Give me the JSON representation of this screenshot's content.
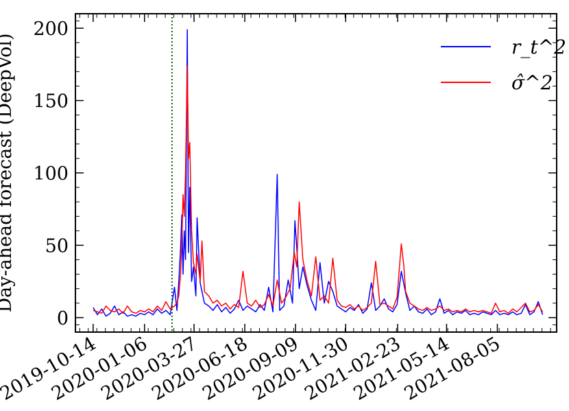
{
  "chart_data": {
    "type": "line",
    "title": "",
    "xlabel": "",
    "ylabel": "Day-ahead forecast (DeepVol)",
    "x_tick_labels": [
      "2019-10-14",
      "2020-01-06",
      "2020-03-27",
      "2020-06-18",
      "2020-09-09",
      "2020-11-30",
      "2021-02-23",
      "2021-05-14",
      "2021-08-05"
    ],
    "xlim": [
      "2019-09-15",
      "2021-11-10"
    ],
    "y_ticks": [
      0,
      50,
      100,
      150,
      200
    ],
    "y_tick_labels": [
      "0",
      "50",
      "100",
      "150",
      "200"
    ],
    "ylim": [
      -10,
      210
    ],
    "legend_position": "top-right",
    "vline": {
      "x": "2020-02-20",
      "color": "#006400",
      "style": "dotted"
    },
    "series": [
      {
        "name": "r_t^2",
        "color": "#0000ff",
        "points": [
          [
            "2019-10-14",
            7
          ],
          [
            "2019-10-21",
            2
          ],
          [
            "2019-10-28",
            6
          ],
          [
            "2019-11-04",
            1
          ],
          [
            "2019-11-11",
            3
          ],
          [
            "2019-11-18",
            8
          ],
          [
            "2019-11-25",
            2
          ],
          [
            "2019-12-02",
            4
          ],
          [
            "2019-12-09",
            1
          ],
          [
            "2019-12-16",
            2
          ],
          [
            "2019-12-23",
            1
          ],
          [
            "2019-12-30",
            3
          ],
          [
            "2020-01-06",
            2
          ],
          [
            "2020-01-13",
            4
          ],
          [
            "2020-01-20",
            2
          ],
          [
            "2020-01-27",
            6
          ],
          [
            "2020-02-03",
            3
          ],
          [
            "2020-02-10",
            5
          ],
          [
            "2020-02-17",
            2
          ],
          [
            "2020-02-24",
            21
          ],
          [
            "2020-02-28",
            5
          ],
          [
            "2020-03-02",
            24
          ],
          [
            "2020-03-05",
            48
          ],
          [
            "2020-03-07",
            71
          ],
          [
            "2020-03-09",
            30
          ],
          [
            "2020-03-11",
            60
          ],
          [
            "2020-03-13",
            40
          ],
          [
            "2020-03-16",
            199
          ],
          [
            "2020-03-18",
            45
          ],
          [
            "2020-03-20",
            90
          ],
          [
            "2020-03-23",
            25
          ],
          [
            "2020-03-26",
            35
          ],
          [
            "2020-03-30",
            15
          ],
          [
            "2020-04-01",
            69
          ],
          [
            "2020-04-06",
            24
          ],
          [
            "2020-04-13",
            10
          ],
          [
            "2020-04-20",
            8
          ],
          [
            "2020-04-27",
            5
          ],
          [
            "2020-05-04",
            9
          ],
          [
            "2020-05-11",
            4
          ],
          [
            "2020-05-18",
            7
          ],
          [
            "2020-05-25",
            3
          ],
          [
            "2020-06-01",
            6
          ],
          [
            "2020-06-08",
            12
          ],
          [
            "2020-06-15",
            5
          ],
          [
            "2020-06-22",
            8
          ],
          [
            "2020-06-29",
            6
          ],
          [
            "2020-07-06",
            4
          ],
          [
            "2020-07-13",
            9
          ],
          [
            "2020-07-20",
            5
          ],
          [
            "2020-07-27",
            21
          ],
          [
            "2020-08-03",
            4
          ],
          [
            "2020-08-10",
            99
          ],
          [
            "2020-08-14",
            5
          ],
          [
            "2020-08-21",
            8
          ],
          [
            "2020-08-28",
            26
          ],
          [
            "2020-09-04",
            10
          ],
          [
            "2020-09-08",
            67
          ],
          [
            "2020-09-11",
            48
          ],
          [
            "2020-09-15",
            20
          ],
          [
            "2020-09-21",
            35
          ],
          [
            "2020-09-28",
            22
          ],
          [
            "2020-10-05",
            12
          ],
          [
            "2020-10-12",
            5
          ],
          [
            "2020-10-19",
            38
          ],
          [
            "2020-10-26",
            10
          ],
          [
            "2020-11-02",
            25
          ],
          [
            "2020-11-09",
            18
          ],
          [
            "2020-11-16",
            8
          ],
          [
            "2020-11-23",
            6
          ],
          [
            "2020-11-30",
            4
          ],
          [
            "2020-12-07",
            7
          ],
          [
            "2020-12-14",
            5
          ],
          [
            "2020-12-21",
            9
          ],
          [
            "2020-12-28",
            3
          ],
          [
            "2021-01-04",
            6
          ],
          [
            "2021-01-11",
            24
          ],
          [
            "2021-01-18",
            5
          ],
          [
            "2021-01-25",
            8
          ],
          [
            "2021-02-01",
            13
          ],
          [
            "2021-02-08",
            6
          ],
          [
            "2021-02-15",
            4
          ],
          [
            "2021-02-22",
            9
          ],
          [
            "2021-03-01",
            32
          ],
          [
            "2021-03-08",
            17
          ],
          [
            "2021-03-15",
            5
          ],
          [
            "2021-03-22",
            8
          ],
          [
            "2021-03-29",
            4
          ],
          [
            "2021-04-05",
            3
          ],
          [
            "2021-04-12",
            6
          ],
          [
            "2021-04-19",
            2
          ],
          [
            "2021-04-26",
            4
          ],
          [
            "2021-05-03",
            13
          ],
          [
            "2021-05-10",
            3
          ],
          [
            "2021-05-17",
            5
          ],
          [
            "2021-05-24",
            2
          ],
          [
            "2021-05-31",
            4
          ],
          [
            "2021-06-07",
            3
          ],
          [
            "2021-06-14",
            5
          ],
          [
            "2021-06-21",
            2
          ],
          [
            "2021-06-28",
            3
          ],
          [
            "2021-07-05",
            2
          ],
          [
            "2021-07-12",
            4
          ],
          [
            "2021-07-19",
            3
          ],
          [
            "2021-07-26",
            2
          ],
          [
            "2021-08-02",
            5
          ],
          [
            "2021-08-09",
            2
          ],
          [
            "2021-08-16",
            3
          ],
          [
            "2021-08-23",
            2
          ],
          [
            "2021-08-30",
            4
          ],
          [
            "2021-09-06",
            2
          ],
          [
            "2021-09-13",
            3
          ],
          [
            "2021-09-20",
            9
          ],
          [
            "2021-09-27",
            2
          ],
          [
            "2021-10-04",
            4
          ],
          [
            "2021-10-11",
            11
          ],
          [
            "2021-10-18",
            2
          ]
        ]
      },
      {
        "name": "σ̂^2",
        "color": "#ff0000",
        "points": [
          [
            "2019-10-14",
            5
          ],
          [
            "2019-10-21",
            4
          ],
          [
            "2019-10-28",
            3
          ],
          [
            "2019-11-04",
            8
          ],
          [
            "2019-11-11",
            5
          ],
          [
            "2019-11-18",
            4
          ],
          [
            "2019-11-25",
            6
          ],
          [
            "2019-12-02",
            3
          ],
          [
            "2019-12-09",
            8
          ],
          [
            "2019-12-16",
            4
          ],
          [
            "2019-12-23",
            3
          ],
          [
            "2019-12-30",
            5
          ],
          [
            "2020-01-06",
            4
          ],
          [
            "2020-01-13",
            6
          ],
          [
            "2020-01-20",
            4
          ],
          [
            "2020-01-27",
            8
          ],
          [
            "2020-02-03",
            5
          ],
          [
            "2020-02-10",
            11
          ],
          [
            "2020-02-17",
            6
          ],
          [
            "2020-02-24",
            8
          ],
          [
            "2020-02-28",
            10
          ],
          [
            "2020-03-02",
            15
          ],
          [
            "2020-03-05",
            30
          ],
          [
            "2020-03-07",
            50
          ],
          [
            "2020-03-09",
            85
          ],
          [
            "2020-03-11",
            70
          ],
          [
            "2020-03-13",
            100
          ],
          [
            "2020-03-16",
            174
          ],
          [
            "2020-03-18",
            110
          ],
          [
            "2020-03-20",
            121
          ],
          [
            "2020-03-23",
            60
          ],
          [
            "2020-03-26",
            38
          ],
          [
            "2020-03-30",
            30
          ],
          [
            "2020-04-01",
            44
          ],
          [
            "2020-04-06",
            25
          ],
          [
            "2020-04-09",
            53
          ],
          [
            "2020-04-13",
            18
          ],
          [
            "2020-04-20",
            15
          ],
          [
            "2020-04-27",
            10
          ],
          [
            "2020-05-04",
            12
          ],
          [
            "2020-05-11",
            8
          ],
          [
            "2020-05-18",
            10
          ],
          [
            "2020-05-25",
            6
          ],
          [
            "2020-06-01",
            9
          ],
          [
            "2020-06-08",
            7
          ],
          [
            "2020-06-15",
            32
          ],
          [
            "2020-06-22",
            10
          ],
          [
            "2020-06-29",
            8
          ],
          [
            "2020-07-06",
            12
          ],
          [
            "2020-07-13",
            7
          ],
          [
            "2020-07-20",
            9
          ],
          [
            "2020-07-27",
            16
          ],
          [
            "2020-08-03",
            8
          ],
          [
            "2020-08-10",
            26
          ],
          [
            "2020-08-17",
            10
          ],
          [
            "2020-08-24",
            14
          ],
          [
            "2020-08-31",
            20
          ],
          [
            "2020-09-07",
            45
          ],
          [
            "2020-09-11",
            35
          ],
          [
            "2020-09-15",
            80
          ],
          [
            "2020-09-21",
            40
          ],
          [
            "2020-09-28",
            25
          ],
          [
            "2020-10-05",
            15
          ],
          [
            "2020-10-12",
            42
          ],
          [
            "2020-10-19",
            12
          ],
          [
            "2020-10-26",
            15
          ],
          [
            "2020-11-02",
            10
          ],
          [
            "2020-11-09",
            41
          ],
          [
            "2020-11-16",
            12
          ],
          [
            "2020-11-23",
            8
          ],
          [
            "2020-11-30",
            7
          ],
          [
            "2020-12-07",
            9
          ],
          [
            "2020-12-14",
            6
          ],
          [
            "2020-12-21",
            8
          ],
          [
            "2020-12-28",
            5
          ],
          [
            "2021-01-04",
            7
          ],
          [
            "2021-01-11",
            10
          ],
          [
            "2021-01-18",
            39
          ],
          [
            "2021-01-25",
            9
          ],
          [
            "2021-02-01",
            10
          ],
          [
            "2021-02-08",
            8
          ],
          [
            "2021-02-15",
            6
          ],
          [
            "2021-02-22",
            14
          ],
          [
            "2021-03-01",
            51
          ],
          [
            "2021-03-05",
            36
          ],
          [
            "2021-03-08",
            18
          ],
          [
            "2021-03-15",
            10
          ],
          [
            "2021-03-22",
            8
          ],
          [
            "2021-03-29",
            6
          ],
          [
            "2021-04-05",
            5
          ],
          [
            "2021-04-12",
            7
          ],
          [
            "2021-04-19",
            5
          ],
          [
            "2021-04-26",
            6
          ],
          [
            "2021-05-03",
            8
          ],
          [
            "2021-05-10",
            5
          ],
          [
            "2021-05-17",
            6
          ],
          [
            "2021-05-24",
            4
          ],
          [
            "2021-05-31",
            5
          ],
          [
            "2021-06-07",
            4
          ],
          [
            "2021-06-14",
            6
          ],
          [
            "2021-06-21",
            4
          ],
          [
            "2021-06-28",
            5
          ],
          [
            "2021-07-05",
            4
          ],
          [
            "2021-07-12",
            5
          ],
          [
            "2021-07-19",
            4
          ],
          [
            "2021-07-26",
            3
          ],
          [
            "2021-08-02",
            10
          ],
          [
            "2021-08-09",
            4
          ],
          [
            "2021-08-16",
            5
          ],
          [
            "2021-08-23",
            3
          ],
          [
            "2021-08-30",
            6
          ],
          [
            "2021-09-06",
            4
          ],
          [
            "2021-09-13",
            7
          ],
          [
            "2021-09-20",
            10
          ],
          [
            "2021-09-27",
            4
          ],
          [
            "2021-10-04",
            5
          ],
          [
            "2021-10-11",
            9
          ],
          [
            "2021-10-18",
            4
          ]
        ]
      }
    ]
  }
}
